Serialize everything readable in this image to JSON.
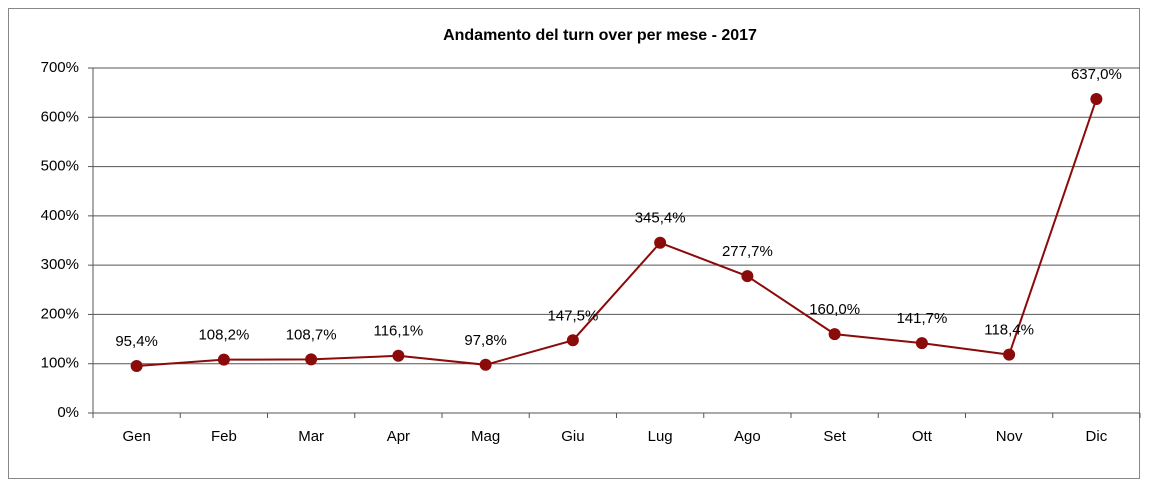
{
  "chart_data": {
    "type": "line",
    "title": "Andamento del turn over per mese - 2017",
    "categories": [
      "Gen",
      "Feb",
      "Mar",
      "Apr",
      "Mag",
      "Giu",
      "Lug",
      "Ago",
      "Set",
      "Ott",
      "Nov",
      "Dic"
    ],
    "series": [
      {
        "color": "#8b0a0a",
        "values": [
          95.4,
          108.2,
          108.7,
          116.1,
          97.8,
          147.5,
          345.4,
          277.7,
          160.0,
          141.7,
          118.4,
          637.0
        ],
        "value_labels": [
          "95,4%",
          "108,2%",
          "108,7%",
          "116,1%",
          "97,8%",
          "147,5%",
          "345,4%",
          "277,7%",
          "160,0%",
          "141,7%",
          "118,4%",
          "637,0%"
        ]
      }
    ],
    "ylim": [
      0,
      700
    ],
    "yticks": [
      {
        "value": 0,
        "label": "0%"
      },
      {
        "value": 100,
        "label": "100%"
      },
      {
        "value": 200,
        "label": "200%"
      },
      {
        "value": 300,
        "label": "300%"
      },
      {
        "value": 400,
        "label": "400%"
      },
      {
        "value": 500,
        "label": "500%"
      },
      {
        "value": 600,
        "label": "600%"
      },
      {
        "value": 700,
        "label": "700%"
      }
    ],
    "grid": true
  }
}
